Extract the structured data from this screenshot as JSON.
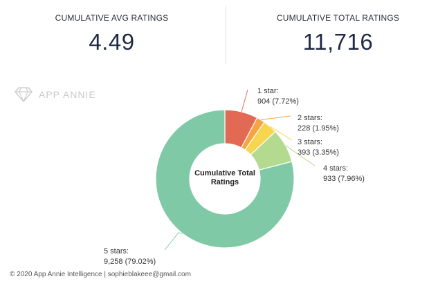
{
  "stats": {
    "avg": {
      "label": "CUMULATIVE AVG RATINGS",
      "value": "4.49"
    },
    "total": {
      "label": "CUMULATIVE TOTAL RATINGS",
      "value": "11,716"
    }
  },
  "watermark": {
    "text": "APP ANNIE",
    "icon": "diamond-logo-icon"
  },
  "footer": {
    "text": "© 2020 App Annie Intelligence | sophieblakeee@gmail.com"
  },
  "chart_data": {
    "type": "pie",
    "center_title": [
      "Cumulative Total",
      "Ratings"
    ],
    "legend_position": "callout labels around donut",
    "slices": [
      {
        "name": "1 star:",
        "value": 904,
        "label": "904 (7.72%)",
        "color": "#e26a55"
      },
      {
        "name": "2 stars:",
        "value": 228,
        "label": "228 (1.95%)",
        "color": "#f5a442"
      },
      {
        "name": "3 stars:",
        "value": 393,
        "label": "393 (3.35%)",
        "color": "#f8d54f"
      },
      {
        "name": "4 stars:",
        "value": 933,
        "label": "933 (7.96%)",
        "color": "#b3da8f"
      },
      {
        "name": "5 stars:",
        "value": 9258,
        "label": "9,258 (79.02%)",
        "color": "#7fc9a7"
      }
    ]
  }
}
